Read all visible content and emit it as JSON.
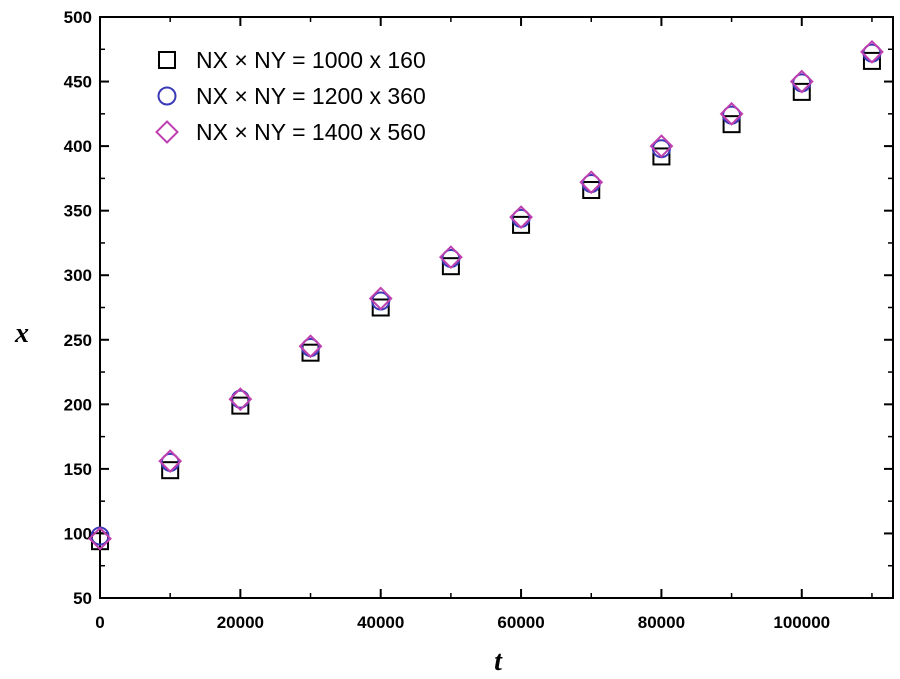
{
  "chart_data": {
    "type": "scatter",
    "title": "",
    "xlabel": "t",
    "ylabel": "x",
    "xlim": [
      0,
      113000
    ],
    "ylim": [
      50,
      500
    ],
    "xticks": [
      0,
      20000,
      40000,
      60000,
      80000,
      100000
    ],
    "yticks": [
      50,
      100,
      150,
      200,
      250,
      300,
      350,
      400,
      450,
      500
    ],
    "minor_ticks": true,
    "grid": false,
    "legend_position": "top-left",
    "x": [
      0,
      10000,
      20000,
      30000,
      40000,
      50000,
      60000,
      70000,
      80000,
      90000,
      100000,
      110000
    ],
    "series": [
      {
        "name": "NX × NY = 1000 x 160",
        "marker": "square",
        "color": "#000000",
        "values": [
          94,
          149,
          199,
          240,
          275,
          307,
          339,
          366,
          392,
          417,
          442,
          466
        ]
      },
      {
        "name": "NX × NY = 1200 x 360",
        "marker": "circle",
        "color": "#3a3ab8",
        "values": [
          98,
          155,
          204,
          244,
          280,
          313,
          344,
          371,
          398,
          424,
          449,
          472
        ]
      },
      {
        "name": "NX × NY = 1400 x 560",
        "marker": "diamond",
        "color": "#c040b0",
        "values": [
          96,
          156,
          204,
          245,
          282,
          314,
          345,
          372,
          400,
          425,
          450,
          473
        ]
      }
    ]
  }
}
